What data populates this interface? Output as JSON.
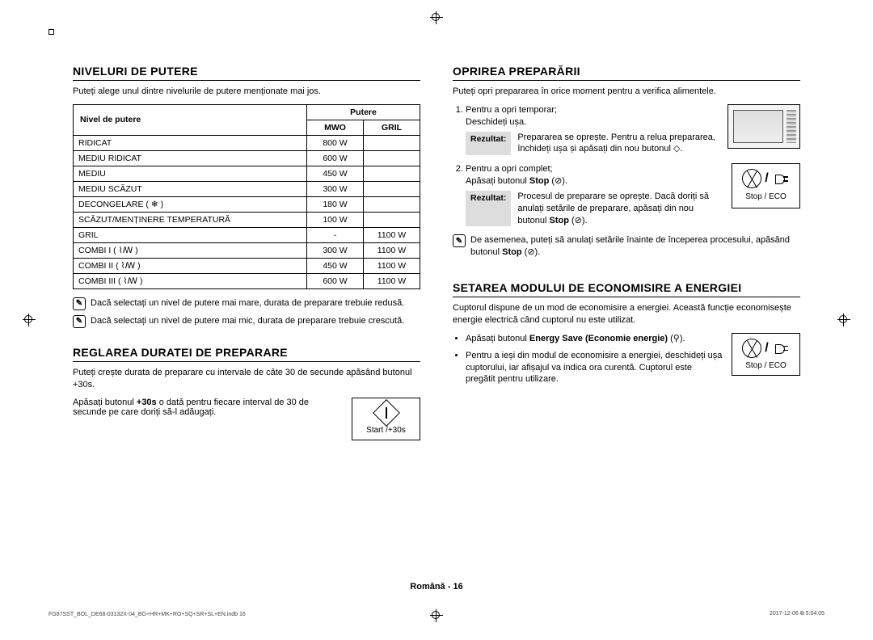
{
  "left": {
    "section1": {
      "heading": "NIVELURI DE PUTERE",
      "intro": "Puteți alege unul dintre nivelurile de putere menționate mai jos.",
      "table": {
        "h_level": "Nivel de putere",
        "h_power": "Putere",
        "h_mwo": "MWO",
        "h_gril": "GRIL",
        "rows": [
          {
            "name": "RIDICAT",
            "mwo": "800 W",
            "gril": ""
          },
          {
            "name": "MEDIU RIDICAT",
            "mwo": "600 W",
            "gril": ""
          },
          {
            "name": "MEDIU",
            "mwo": "450 W",
            "gril": ""
          },
          {
            "name": "MEDIU SCĂZUT",
            "mwo": "300 W",
            "gril": ""
          },
          {
            "name": "DECONGELARE ( ❄ )",
            "mwo": "180 W",
            "gril": ""
          },
          {
            "name": "SCĂZUT/MENȚINERE TEMPERATURĂ",
            "mwo": "100 W",
            "gril": ""
          },
          {
            "name": "GRIL",
            "mwo": "-",
            "gril": "1100 W"
          },
          {
            "name": "COMBI I ( ⌇ꟿ )",
            "mwo": "300 W",
            "gril": "1100 W"
          },
          {
            "name": "COMBI II ( ⌇ꟿ )",
            "mwo": "450 W",
            "gril": "1100 W"
          },
          {
            "name": "COMBI III ( ⌇ꟿ )",
            "mwo": "600 W",
            "gril": "1100 W"
          }
        ]
      },
      "note1": "Dacă selectați un nivel de putere mai mare, durata de preparare trebuie redusă.",
      "note2": "Dacă selectați un nivel de putere mai mic, durata de preparare trebuie crescută."
    },
    "section2": {
      "heading": "REGLAREA DURATEI DE PREPARARE",
      "intro": "Puteți crește durata de preparare cu intervale de câte 30 de secunde apăsând butonul +30s.",
      "body_pre": "Apăsați butonul ",
      "body_bold": "+30s",
      "body_post": " o dată pentru fiecare interval de 30 de secunde pe care doriți să-l adăugați.",
      "button_label": "Start /+30s"
    }
  },
  "right": {
    "section1": {
      "heading": "OPRIREA PREPARĂRII",
      "intro": "Puteți opri prepararea în orice moment pentru a verifica alimentele.",
      "step1_line1": "Pentru a opri temporar;",
      "step1_line2": "Deschideți ușa.",
      "step1_result": "Prepararea se oprește. Pentru a relua prepararea, închideți ușa și apăsați din nou butonul ◇.",
      "step2_line1": "Pentru a opri complet;",
      "step2_line2_pre": "Apăsați butonul ",
      "step2_line2_bold": "Stop",
      "step2_line2_post": " (⊘).",
      "step2_result_pre": "Procesul de preparare se oprește. Dacă doriți să anulați setările de preparare, apăsați din nou butonul ",
      "step2_result_bold": "Stop",
      "step2_result_post": " (⊘).",
      "note_pre": "De asemenea, puteți să anulați setările înainte de începerea procesului, apăsând butonul ",
      "note_bold": "Stop",
      "note_post": " (⊘).",
      "button_label": "Stop / ECO",
      "result_label": "Rezultat:"
    },
    "section2": {
      "heading": "SETAREA MODULUI DE ECONOMISIRE A ENERGIEI",
      "intro": "Cuptorul dispune de un mod de economisire a energiei. Această funcție economisește energie electrică când cuptorul nu este utilizat.",
      "bullet1_pre": "Apăsați butonul ",
      "bullet1_bold": "Energy Save (Economie energie)",
      "bullet1_post": " (⚲).",
      "bullet2": "Pentru a ieși din modul de economisire a energiei, deschideți ușa cuptorului, iar afișajul va indica ora curentă. Cuptorul este pregătit pentru utilizare.",
      "button_label": "Stop / ECO"
    }
  },
  "footer": {
    "page": "Română - 16",
    "left": "FG87SST_BOL_DE68-03132X-04_BG+HR+MK+RO+SQ+SR+SL+EN.indb   16",
    "right": "2017-12-06   ⧉ 5:04:05"
  }
}
